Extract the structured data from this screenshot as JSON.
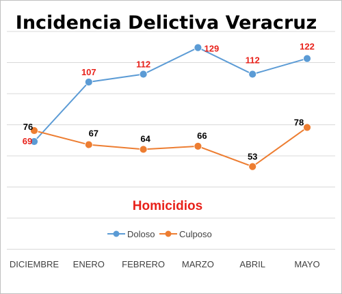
{
  "chart_data": {
    "type": "line",
    "title": "Incidencia Delictiva Veracruz",
    "subtitle": "Homicidios",
    "categories": [
      "DICIEMBRE",
      "ENERO",
      "FEBRERO",
      "MARZO",
      "ABRIL",
      "MAYO"
    ],
    "series": [
      {
        "name": "Doloso",
        "values": [
          69,
          107,
          112,
          129,
          112,
          122
        ],
        "color": "#5b9bd5",
        "label_color": "#e8211a"
      },
      {
        "name": "Culposo",
        "values": [
          76,
          67,
          64,
          66,
          53,
          78
        ],
        "color": "#ed7d31",
        "label_color": "#000000"
      }
    ],
    "ylim": [
      0,
      140
    ],
    "grid": true,
    "legend_position": "bottom"
  }
}
